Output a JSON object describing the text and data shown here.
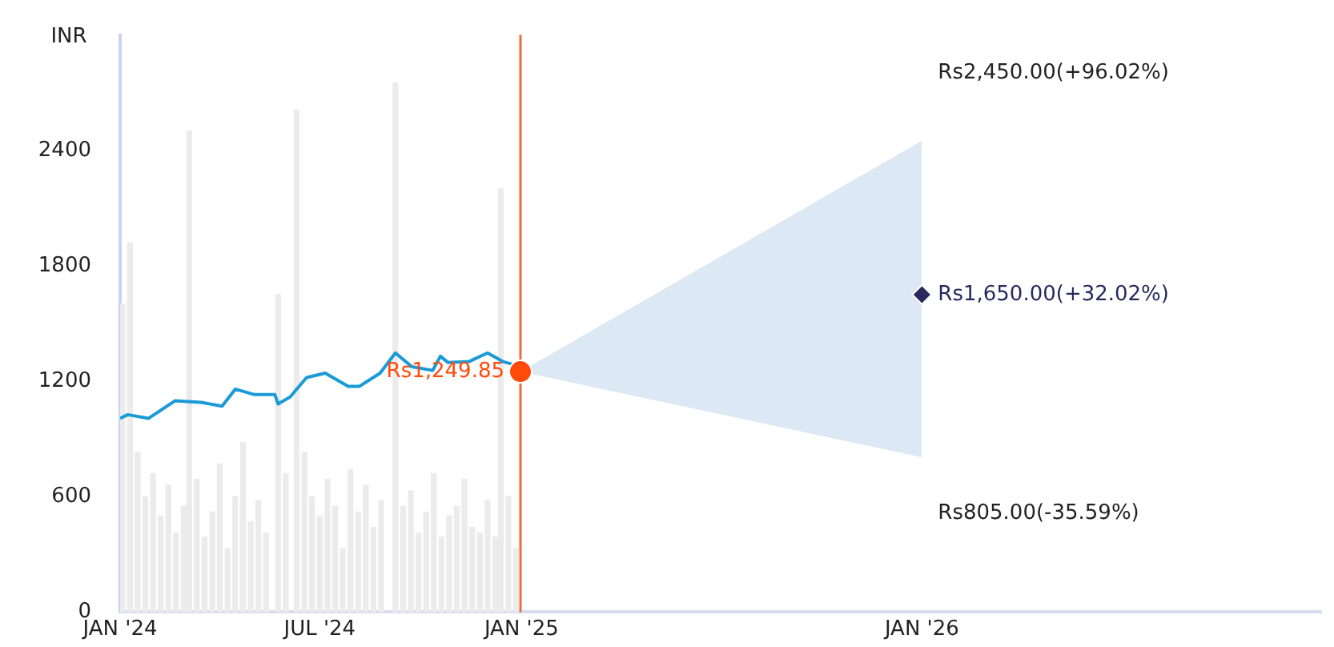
{
  "chart_data": {
    "type": "line",
    "ylabel": "INR",
    "xlim": [
      "2024-01-01",
      "2026-12-31"
    ],
    "xticks": [
      {
        "value": "2024-01-01",
        "label": "JAN '24"
      },
      {
        "value": "2024-07-01",
        "label": "JUL '24"
      },
      {
        "value": "2025-01-01",
        "label": "JAN '25"
      },
      {
        "value": "2026-01-01",
        "label": "JAN '26"
      }
    ],
    "ylim": [
      0,
      3000
    ],
    "yticks": [
      0,
      600,
      1200,
      1800,
      2400
    ],
    "grid": false,
    "legend": false,
    "ref_lines": [
      {
        "axis": "x",
        "value": "2024-12-31",
        "color": "#f26a3c"
      }
    ],
    "annotations": [
      {
        "text": "Rs2,450.00(+96.02%)",
        "x": "2026-01-01",
        "y": 2450
      },
      {
        "text": "Rs805.00(-35.59%)",
        "x": "2026-01-01",
        "y": 805
      }
    ],
    "series": [
      {
        "type": "bar",
        "color": "#ebebeb",
        "x": [
          "2024-01-03",
          "2024-01-10",
          "2024-01-17",
          "2024-01-24",
          "2024-01-31",
          "2024-02-07",
          "2024-02-14",
          "2024-02-21",
          "2024-02-28",
          "2024-03-04",
          "2024-03-11",
          "2024-03-18",
          "2024-03-25",
          "2024-04-01",
          "2024-04-08",
          "2024-04-15",
          "2024-04-22",
          "2024-04-29",
          "2024-05-06",
          "2024-05-13",
          "2024-05-24",
          "2024-05-31",
          "2024-06-10",
          "2024-06-17",
          "2024-06-24",
          "2024-07-01",
          "2024-07-08",
          "2024-07-15",
          "2024-07-22",
          "2024-07-29",
          "2024-08-05",
          "2024-08-12",
          "2024-08-19",
          "2024-08-26",
          "2024-09-08",
          "2024-09-15",
          "2024-09-22",
          "2024-09-29",
          "2024-10-06",
          "2024-10-13",
          "2024-10-20",
          "2024-10-27",
          "2024-11-03",
          "2024-11-10",
          "2024-11-17",
          "2024-11-24",
          "2024-12-01",
          "2024-12-08",
          "2024-12-13",
          "2024-12-20",
          "2024-12-27"
        ],
        "values": [
          1600,
          1920,
          830,
          600,
          720,
          500,
          660,
          410,
          550,
          2500,
          690,
          390,
          520,
          770,
          330,
          600,
          880,
          470,
          580,
          410,
          1650,
          720,
          2610,
          830,
          600,
          500,
          690,
          550,
          330,
          740,
          520,
          660,
          440,
          580,
          2750,
          550,
          630,
          410,
          520,
          720,
          390,
          500,
          550,
          690,
          440,
          410,
          580,
          390,
          2200,
          600,
          330
        ]
      },
      {
        "color": "#1a9ad6",
        "marker": "none",
        "x": [
          "2024-01-01",
          "2024-01-08",
          "2024-01-27",
          "2024-02-20",
          "2024-03-15",
          "2024-04-03",
          "2024-04-15",
          "2024-05-02",
          "2024-05-21",
          "2024-05-24",
          "2024-06-04",
          "2024-06-19",
          "2024-07-06",
          "2024-07-27",
          "2024-08-06",
          "2024-08-25",
          "2024-09-08",
          "2024-09-23",
          "2024-10-12",
          "2024-10-19",
          "2024-10-26",
          "2024-11-14",
          "2024-12-01",
          "2024-12-15",
          "2024-12-27",
          "2024-12-31"
        ],
        "values": [
          1007,
          1026,
          1007,
          1098,
          1090,
          1070,
          1159,
          1131,
          1131,
          1082,
          1118,
          1219,
          1242,
          1173,
          1173,
          1242,
          1347,
          1275,
          1256,
          1330,
          1297,
          1302,
          1347,
          1302,
          1283,
          1249.85
        ]
      },
      {
        "type": "scatter",
        "color": "#262a5c",
        "marker": "diamond",
        "x": [
          "2024-12-31",
          "2026-01-01"
        ],
        "values": [
          null,
          1650
        ],
        "lower": [
          1249.85,
          805
        ],
        "upper": [
          1249.85,
          2450
        ],
        "value_labels": [
          null,
          "Rs1,650.00(+32.02%)"
        ]
      },
      {
        "type": "scatter",
        "color": "#ff4a0a",
        "marker": "circle",
        "x": [
          "2024-12-31"
        ],
        "values": [
          1249.85
        ],
        "value_labels": [
          "Rs1,249.85"
        ]
      }
    ]
  }
}
